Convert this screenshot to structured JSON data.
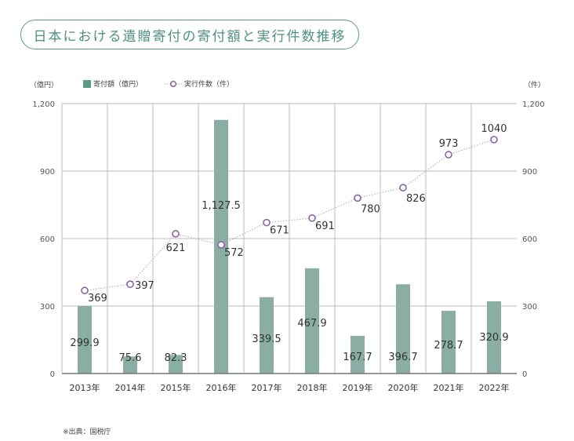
{
  "chart_data": {
    "type": "bar+line",
    "title": "日本における遺贈寄付の寄付額と実行件数推移",
    "categories": [
      "2013年",
      "2014年",
      "2015年",
      "2016年",
      "2017年",
      "2018年",
      "2019年",
      "2020年",
      "2021年",
      "2022年"
    ],
    "series": [
      {
        "name": "寄付額（億円）",
        "type": "bar",
        "axis": "left",
        "color": "#8aaea3",
        "legend_color": "#5e9a8a",
        "values": [
          299.9,
          75.6,
          82.3,
          1127.5,
          339.5,
          467.9,
          167.7,
          396.7,
          278.7,
          320.9
        ],
        "labels": [
          "299.9",
          "75.6",
          "82.3",
          "1,127.5",
          "339.5",
          "467.9",
          "167.7",
          "396.7",
          "278.7",
          "320.9"
        ]
      },
      {
        "name": "実行件数（件）",
        "type": "line",
        "axis": "right",
        "color": "#8a62a8",
        "line_style": "dotted",
        "values": [
          369,
          397,
          621,
          572,
          671,
          691,
          780,
          826,
          973,
          1040
        ],
        "labels": [
          "369",
          "397",
          "621",
          "572",
          "671",
          "691",
          "780",
          "826",
          "973",
          "1040"
        ]
      }
    ],
    "ylabel_left": "（億円）",
    "ylabel_right": "（件）",
    "ylim_left": [
      0,
      1200
    ],
    "ylim_right": [
      0,
      1200
    ],
    "yticks_left": [
      "0",
      "300",
      "600",
      "900",
      "1,200"
    ],
    "yticks_right": [
      "0",
      "300",
      "600",
      "900",
      "1,200"
    ],
    "grid": true,
    "legend_position": "top"
  },
  "source": "※出典：国税庁"
}
